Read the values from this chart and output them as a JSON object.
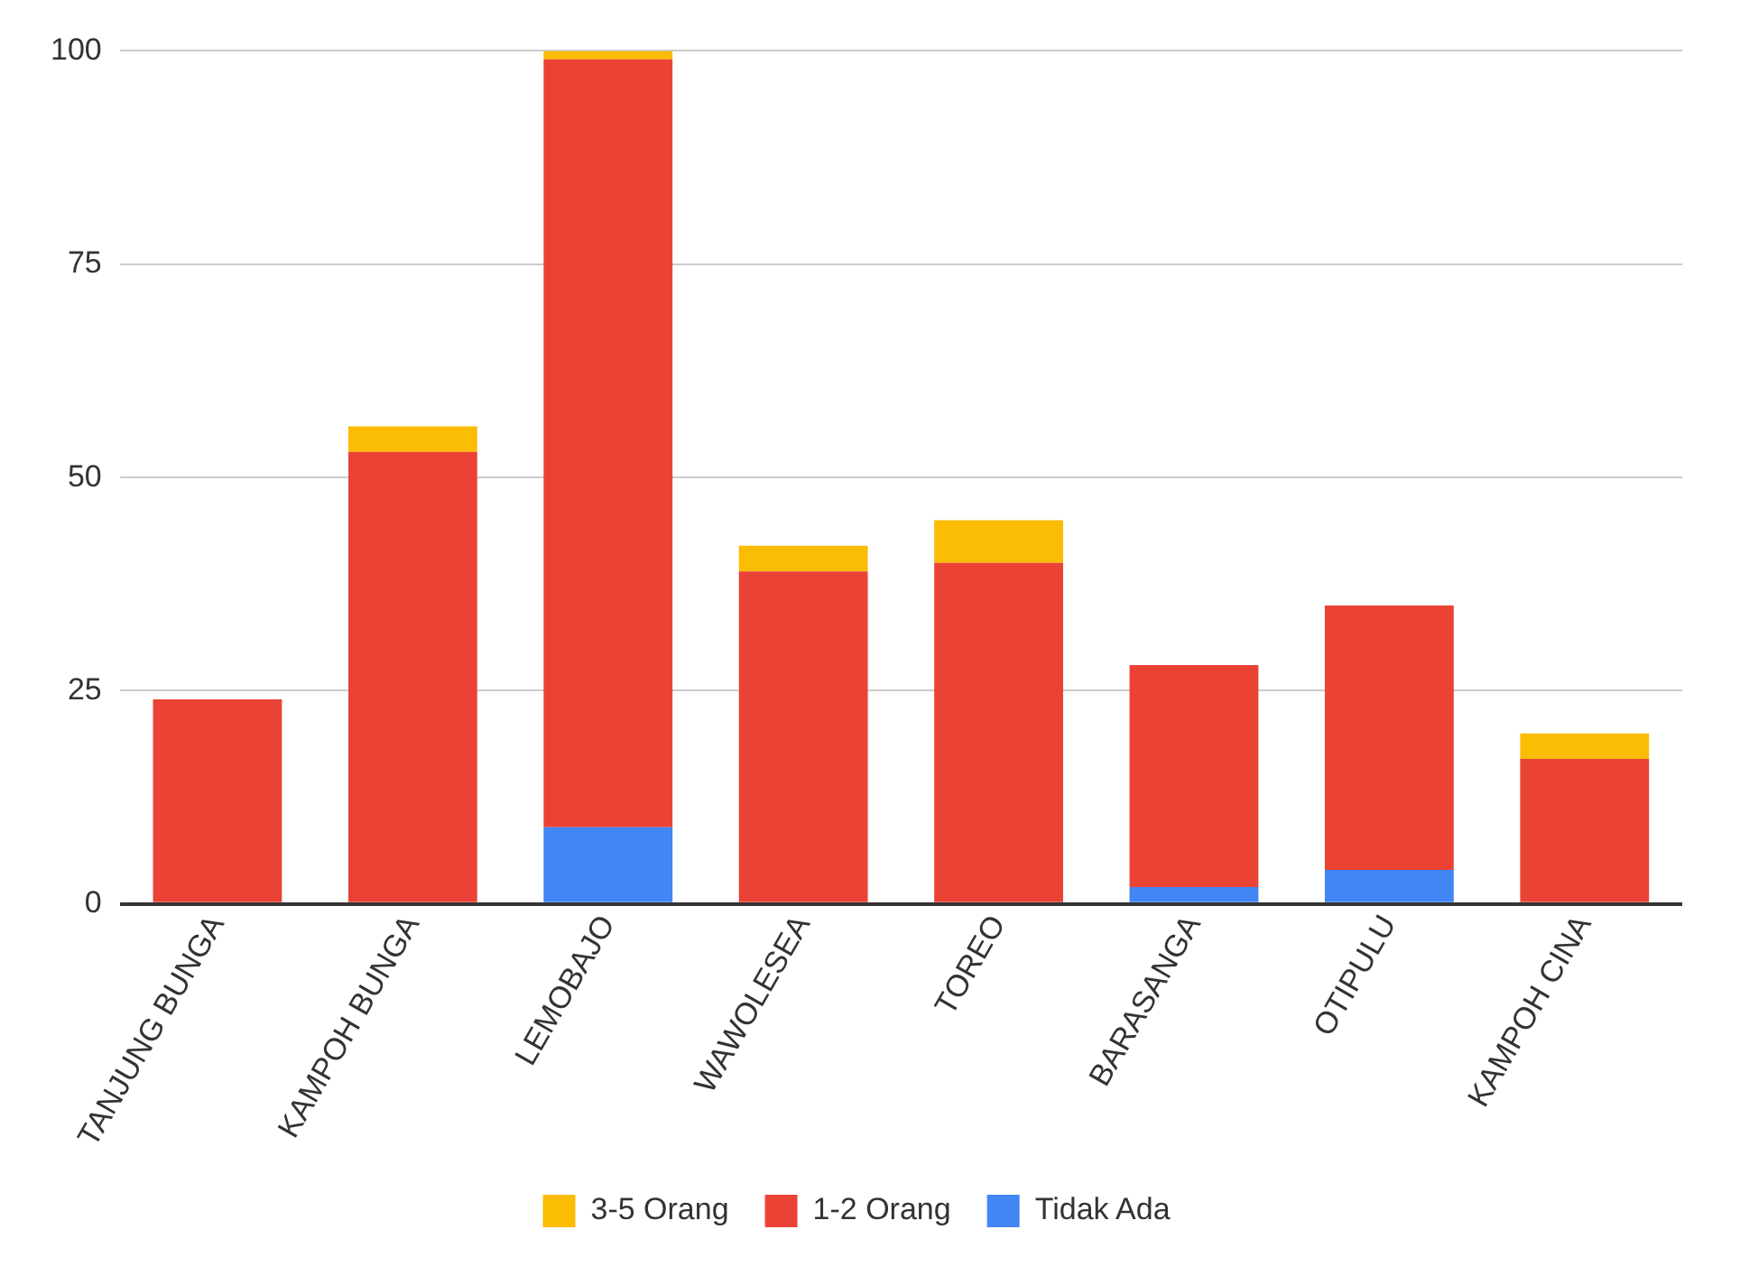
{
  "chart_data": {
    "type": "bar",
    "stacked": true,
    "categories": [
      "TANJUNG BUNGA",
      "KAMPOH BUNGA",
      "LEMOBAJO",
      "WAWOLESEA",
      "TOREO",
      "BARASANGA",
      "OTIPULU",
      "KAMPOH CINA"
    ],
    "series": [
      {
        "name": "Tidak Ada",
        "color": "#4285f4",
        "values": [
          null,
          null,
          9,
          null,
          null,
          2,
          4,
          null
        ]
      },
      {
        "name": "1-2 Orang",
        "color": "#ea4335",
        "values": [
          24,
          53,
          90,
          39,
          40,
          26,
          31,
          17
        ]
      },
      {
        "name": "3-5 Orang",
        "color": "#fbbc04",
        "values": [
          null,
          3,
          1,
          3,
          5,
          null,
          null,
          3
        ]
      }
    ],
    "ylim": [
      0,
      100
    ],
    "yticks": [
      0,
      25,
      50,
      75,
      100
    ],
    "grid": "y",
    "legend": "bottom"
  }
}
